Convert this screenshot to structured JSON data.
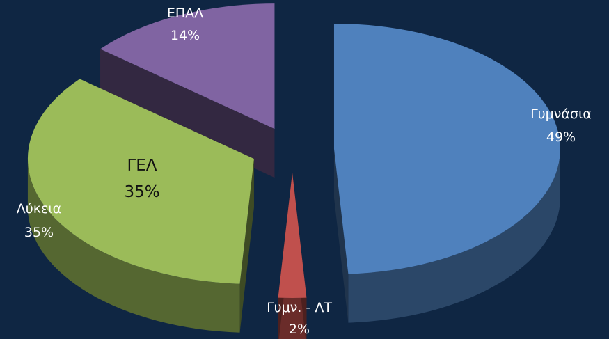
{
  "chart_data": {
    "type": "pie",
    "style": "3d-exploded",
    "slices": [
      {
        "label": "Γυμνάσια",
        "value": 49,
        "value_label": "49%",
        "color": "#4f81bd"
      },
      {
        "label": "Γυμν. - ΛΤ",
        "value": 2,
        "value_label": "2%",
        "color": "#c0504d"
      },
      {
        "label": "Λύκεια",
        "value": 35,
        "value_label": "35%",
        "color": "#9bbb59"
      },
      {
        "label": "ΕΠΑΛ",
        "value": 14,
        "value_label": "14%",
        "color": "#8064a2"
      }
    ],
    "annotations": [
      {
        "text": "ΓΕΛ",
        "value_label": "35%"
      }
    ],
    "legend": "none"
  },
  "colors": {
    "background": "#0f2643"
  }
}
